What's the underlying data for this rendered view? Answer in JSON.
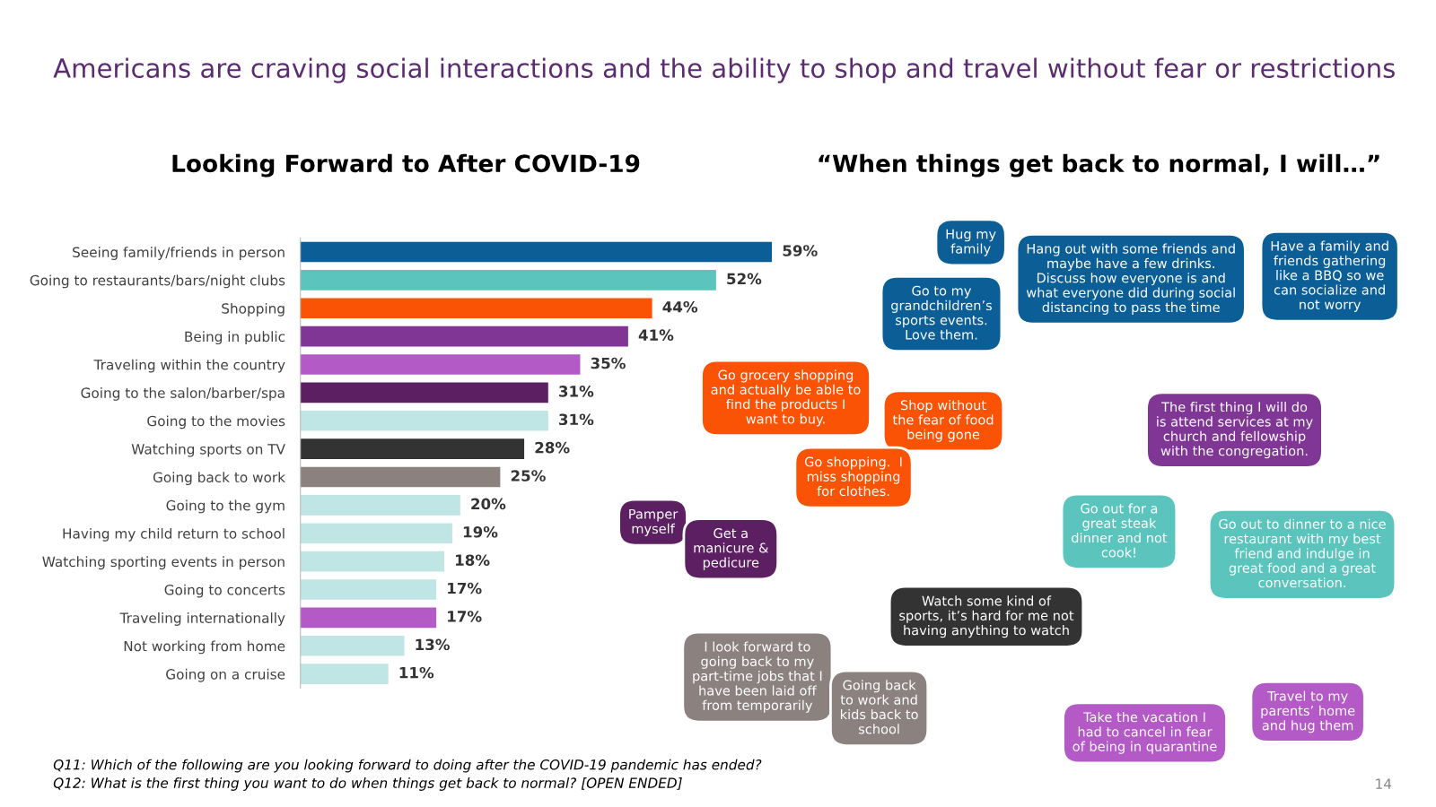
{
  "chart_data": {
    "type": "bar",
    "orientation": "horizontal",
    "title": "Americans are craving social interactions and the ability to shop and travel without fear or restrictions",
    "subtitle": "Looking Forward to After COVID-19",
    "categories": [
      "Seeing family/friends in person",
      "Going to restaurants/bars/night clubs",
      "Shopping",
      "Being in public",
      "Traveling within the country",
      "Going to the salon/barber/spa",
      "Going to the movies",
      "Watching sports on TV",
      "Going back to work",
      "Going to the gym",
      "Having my child return to school",
      "Watching sporting events in person",
      "Going to concerts",
      "Traveling internationally",
      "Not working from home",
      "Going on a cruise"
    ],
    "values": [
      59,
      52,
      44,
      41,
      35,
      31,
      31,
      28,
      25,
      20,
      19,
      18,
      17,
      17,
      13,
      11
    ],
    "value_labels": [
      "59%",
      "52%",
      "44%",
      "41%",
      "35%",
      "31%",
      "31%",
      "28%",
      "25%",
      "20%",
      "19%",
      "18%",
      "17%",
      "17%",
      "13%",
      "11%"
    ],
    "colors": [
      "#0b5e96",
      "#5bc4bd",
      "#fa5305",
      "#7f3695",
      "#b35ac6",
      "#5c2062",
      "#bfe6e4",
      "#333333",
      "#8b8280",
      "#bfe6e4",
      "#bfe6e4",
      "#bfe6e4",
      "#bfe6e4",
      "#b35ac6",
      "#bfe6e4",
      "#bfe6e4"
    ],
    "annotations": [
      "“When things get back to normal, I will…”",
      "Hug my\nfamily",
      "Hang out with some friends and\nmaybe have a few drinks.\nDiscuss how everyone is and\nwhat everyone did during social\ndistancing to pass the time",
      "Have a family and\nfriends gathering\nlike a BBQ so we\ncan socialize and\nnot worry",
      "Go to my\ngrandchildren’s\nsports events.\nLove them.",
      "Go grocery shopping\nand actually be able to\nfind the products I\nwant to buy.",
      "Shop without\nthe fear of food\nbeing gone",
      "Go shopping.  I\nmiss shopping\nfor clothes.",
      "The first thing I will do\nis attend services at my\nchurch and fellowship\nwith the congregation.",
      "Pamper\nmyself",
      "Get a\nmanicure &\npedicure",
      "Go out for a\ngreat steak\ndinner and not\ncook!",
      "Go out to dinner to a nice\nrestaurant with my best\nfriend and indulge in\ngreat food and a great\nconversation.",
      "Watch some kind of\nsports, it’s hard for me not\nhaving anything to watch",
      "I look forward to\ngoing back to my\npart-time jobs that I\nhave been laid off\nfrom temporarily",
      "Going back\nto work and\nkids back to\nschool",
      "Travel to my\nparents’ home\nand hug them",
      "Take the vacation I\nhad to cancel in fear\nof being in quarantine",
      "Q11: Which of the following are you looking forward to doing after the COVID-19 pandemic has ended?",
      "Q12: What is the first thing you want to do when things get back to normal? [OPEN ENDED]",
      "14"
    ]
  }
}
